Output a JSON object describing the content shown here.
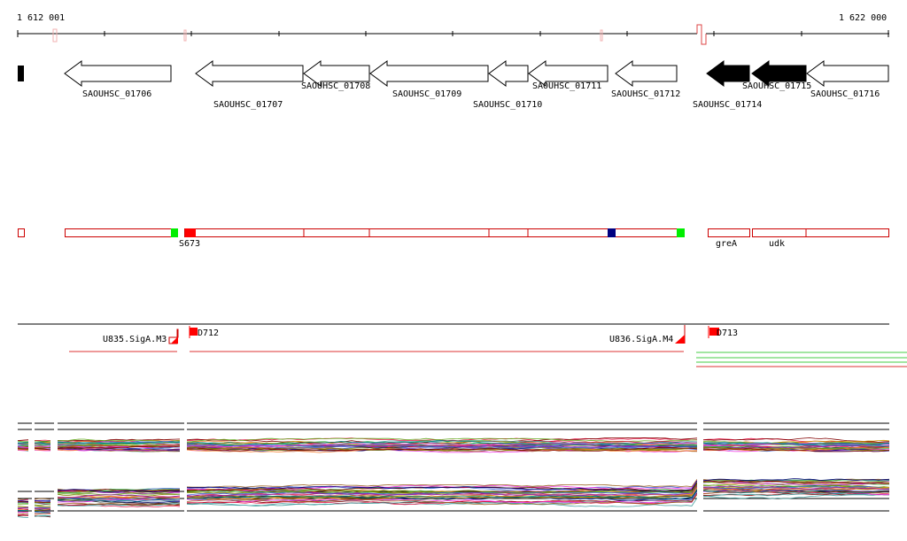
{
  "ruler": {
    "start_label": "1 612 001",
    "end_label": "1 622 000"
  },
  "genes": [
    {
      "label": "SAOUHSC_01706",
      "filled": false
    },
    {
      "label": "SAOUHSC_01707",
      "filled": false
    },
    {
      "label": "SAOUHSC_01708",
      "filled": false
    },
    {
      "label": "SAOUHSC_01709",
      "filled": false
    },
    {
      "label": "SAOUHSC_01710",
      "filled": false
    },
    {
      "label": "SAOUHSC_01711",
      "filled": false
    },
    {
      "label": "SAOUHSC_01712",
      "filled": false
    },
    {
      "label": "SAOUHSC_01714",
      "filled": true
    },
    {
      "label": "SAOUHSC_01715",
      "filled": true
    },
    {
      "label": "SAOUHSC_01716",
      "filled": false
    }
  ],
  "features": {
    "s673": "S673",
    "grea": "greA",
    "udk": "udk"
  },
  "transcripts": {
    "u835": "U835.SigA.M3",
    "u836": "U836.SigA.M4",
    "d712": "D712",
    "d713": "D713"
  },
  "colors": {
    "feature_red": "#cc0000",
    "marker_green": "#00ee00",
    "marker_blue": "#000080",
    "marker_red": "#ff0000",
    "transcript_green": "#44cc44"
  }
}
